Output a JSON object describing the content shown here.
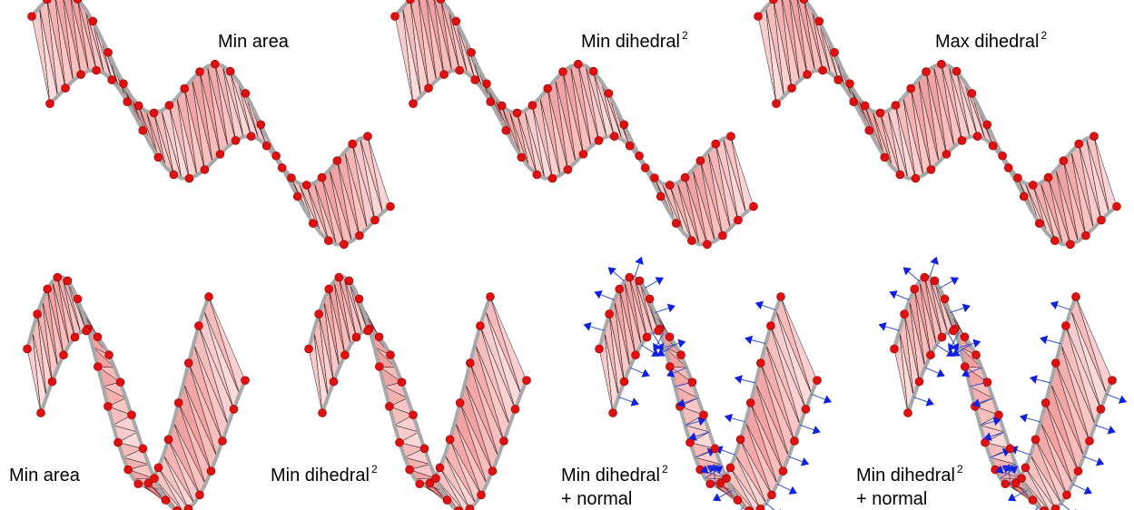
{
  "panels": [
    {
      "label": {
        "text": "Min area"
      }
    },
    {
      "label": {
        "text": "Min dihedral",
        "superscript": "2"
      }
    },
    {
      "label": {
        "text": "Max dihedral",
        "superscript": "2"
      }
    },
    {
      "label": {
        "text": "Min area"
      }
    },
    {
      "label": {
        "text": "Min dihedral",
        "superscript": "2"
      }
    },
    {
      "label": {
        "text": "Min dihedral",
        "superscript": "2",
        "line2": "+ normal"
      }
    },
    {
      "label": {
        "text": "Min dihedral",
        "superscript": "2",
        "line2": "+ normal"
      }
    }
  ]
}
